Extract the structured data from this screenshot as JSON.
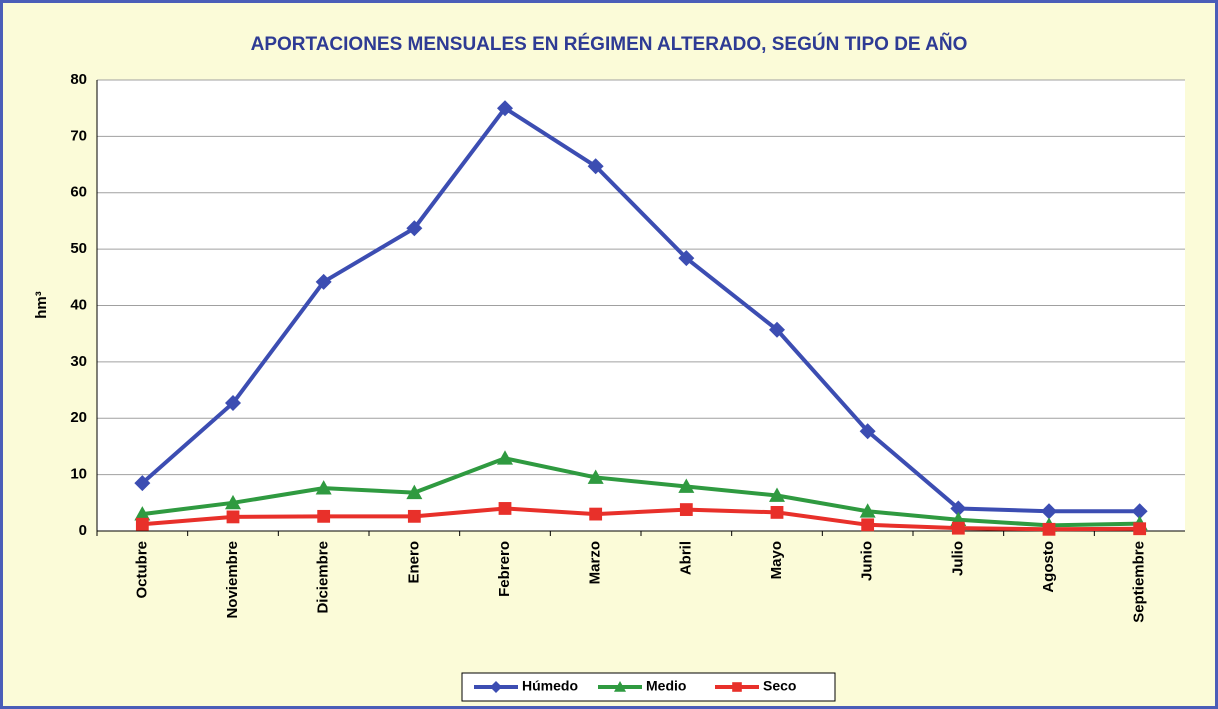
{
  "chart_data": {
    "type": "line",
    "title": "APORTACIONES MENSUALES EN RÉGIMEN ALTERADO, SEGÚN TIPO DE AÑO",
    "y_label": "hm³",
    "categories": [
      "Octubre",
      "Noviembre",
      "Diciembre",
      "Enero",
      "Febrero",
      "Marzo",
      "Abril",
      "Mayo",
      "Junio",
      "Julio",
      "Agosto",
      "Septiembre"
    ],
    "series": [
      {
        "name": "Húmedo",
        "color": "#3c4db2",
        "marker": "diamond",
        "values": [
          8.5,
          22.7,
          44.2,
          53.7,
          75,
          64.7,
          48.4,
          35.7,
          17.7,
          4,
          3.5,
          3.5
        ]
      },
      {
        "name": "Medio",
        "color": "#2f9a40",
        "marker": "triangle",
        "values": [
          3,
          5,
          7.6,
          6.8,
          12.9,
          9.5,
          7.9,
          6.3,
          3.5,
          2,
          1,
          1.3
        ]
      },
      {
        "name": "Seco",
        "color": "#e8302a",
        "marker": "square",
        "values": [
          1.2,
          2.5,
          2.6,
          2.6,
          4,
          3,
          3.8,
          3.3,
          1.1,
          0.5,
          0.3,
          0.4
        ]
      }
    ],
    "ylim": [
      0,
      80
    ],
    "yticks": [
      0,
      10,
      20,
      30,
      40,
      50,
      60,
      70,
      80
    ],
    "grid": true,
    "legend": "bottom"
  }
}
